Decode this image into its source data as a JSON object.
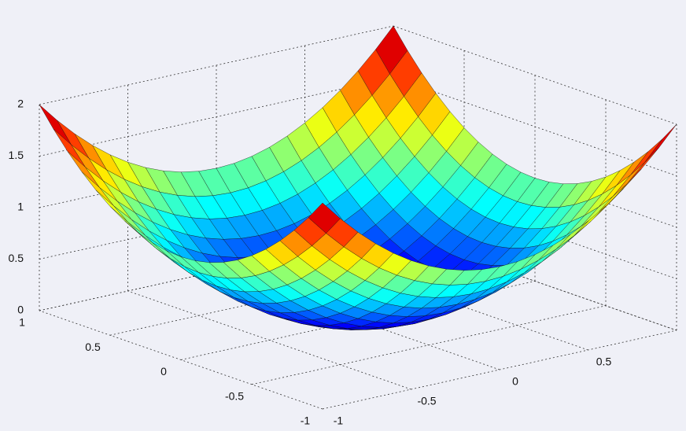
{
  "chart_data": {
    "type": "surface",
    "x": [
      -1,
      -0.9,
      -0.8,
      -0.7,
      -0.6,
      -0.5,
      -0.4,
      -0.3,
      -0.2,
      -0.1,
      0,
      0.1,
      0.2,
      0.3,
      0.4,
      0.5,
      0.6,
      0.7,
      0.8,
      0.9,
      1
    ],
    "y": [
      -1,
      -0.9,
      -0.8,
      -0.7,
      -0.6,
      -0.5,
      -0.4,
      -0.3,
      -0.2,
      -0.1,
      0,
      0.1,
      0.2,
      0.3,
      0.4,
      0.5,
      0.6,
      0.7,
      0.8,
      0.9,
      1
    ],
    "z": [
      [
        2,
        1.81,
        1.64,
        1.49,
        1.36,
        1.25,
        1.16,
        1.09,
        1.04,
        1.01,
        1,
        1.01,
        1.04,
        1.09,
        1.16,
        1.25,
        1.36,
        1.49,
        1.64,
        1.81,
        2
      ],
      [
        1.81,
        1.62,
        1.45,
        1.3,
        1.17,
        1.06,
        0.97,
        0.9,
        0.85,
        0.82,
        0.81,
        0.82,
        0.85,
        0.9,
        0.97,
        1.06,
        1.17,
        1.3,
        1.45,
        1.62,
        1.81
      ],
      [
        1.64,
        1.45,
        1.28,
        1.13,
        1,
        0.89,
        0.8,
        0.73,
        0.68,
        0.65,
        0.64,
        0.65,
        0.68,
        0.73,
        0.8,
        0.89,
        1,
        1.13,
        1.28,
        1.45,
        1.64
      ],
      [
        1.49,
        1.3,
        1.13,
        0.98,
        0.85,
        0.74,
        0.65,
        0.58,
        0.53,
        0.5,
        0.49,
        0.5,
        0.53,
        0.58,
        0.65,
        0.74,
        0.85,
        0.98,
        1.13,
        1.3,
        1.49
      ],
      [
        1.36,
        1.17,
        1,
        0.85,
        0.72,
        0.61,
        0.52,
        0.45,
        0.4,
        0.37,
        0.36,
        0.37,
        0.4,
        0.45,
        0.52,
        0.61,
        0.72,
        0.85,
        1,
        1.17,
        1.36
      ],
      [
        1.25,
        1.06,
        0.89,
        0.74,
        0.61,
        0.5,
        0.41,
        0.34,
        0.29,
        0.26,
        0.25,
        0.26,
        0.29,
        0.34,
        0.41,
        0.5,
        0.61,
        0.74,
        0.89,
        1.06,
        1.25
      ],
      [
        1.16,
        0.97,
        0.8,
        0.65,
        0.52,
        0.41,
        0.32,
        0.25,
        0.2,
        0.17,
        0.16,
        0.17,
        0.2,
        0.25,
        0.32,
        0.41,
        0.52,
        0.65,
        0.8,
        0.97,
        1.16
      ],
      [
        1.09,
        0.9,
        0.73,
        0.58,
        0.45,
        0.34,
        0.25,
        0.18,
        0.13,
        0.1,
        0.09,
        0.1,
        0.13,
        0.18,
        0.25,
        0.34,
        0.45,
        0.58,
        0.73,
        0.9,
        1.09
      ],
      [
        1.04,
        0.85,
        0.68,
        0.53,
        0.4,
        0.29,
        0.2,
        0.13,
        0.08,
        0.05,
        0.04,
        0.05,
        0.08,
        0.13,
        0.2,
        0.29,
        0.4,
        0.53,
        0.68,
        0.85,
        1.04
      ],
      [
        1.01,
        0.82,
        0.65,
        0.5,
        0.37,
        0.26,
        0.17,
        0.1,
        0.05,
        0.02,
        0.01,
        0.02,
        0.05,
        0.1,
        0.17,
        0.26,
        0.37,
        0.5,
        0.65,
        0.82,
        1.01
      ],
      [
        1,
        0.81,
        0.64,
        0.49,
        0.36,
        0.25,
        0.16,
        0.09,
        0.04,
        0.01,
        0,
        0.01,
        0.04,
        0.09,
        0.16,
        0.25,
        0.36,
        0.49,
        0.64,
        0.81,
        1
      ],
      [
        1.01,
        0.82,
        0.65,
        0.5,
        0.37,
        0.26,
        0.17,
        0.1,
        0.05,
        0.02,
        0.01,
        0.02,
        0.05,
        0.1,
        0.17,
        0.26,
        0.37,
        0.5,
        0.65,
        0.82,
        1.01
      ],
      [
        1.04,
        0.85,
        0.68,
        0.53,
        0.4,
        0.29,
        0.2,
        0.13,
        0.08,
        0.05,
        0.04,
        0.05,
        0.08,
        0.13,
        0.2,
        0.29,
        0.4,
        0.53,
        0.68,
        0.85,
        1.04
      ],
      [
        1.09,
        0.9,
        0.73,
        0.58,
        0.45,
        0.34,
        0.25,
        0.18,
        0.13,
        0.1,
        0.09,
        0.1,
        0.13,
        0.18,
        0.25,
        0.34,
        0.45,
        0.58,
        0.73,
        0.9,
        1.09
      ],
      [
        1.16,
        0.97,
        0.8,
        0.65,
        0.52,
        0.41,
        0.32,
        0.25,
        0.2,
        0.17,
        0.16,
        0.17,
        0.2,
        0.25,
        0.32,
        0.41,
        0.52,
        0.65,
        0.8,
        0.97,
        1.16
      ],
      [
        1.25,
        1.06,
        0.89,
        0.74,
        0.61,
        0.5,
        0.41,
        0.34,
        0.29,
        0.26,
        0.25,
        0.26,
        0.29,
        0.34,
        0.41,
        0.5,
        0.61,
        0.74,
        0.89,
        1.06,
        1.25
      ],
      [
        1.36,
        1.17,
        1,
        0.85,
        0.72,
        0.61,
        0.52,
        0.45,
        0.4,
        0.37,
        0.36,
        0.37,
        0.4,
        0.45,
        0.52,
        0.61,
        0.72,
        0.85,
        1,
        1.17,
        1.36
      ],
      [
        1.49,
        1.3,
        1.13,
        0.98,
        0.85,
        0.74,
        0.65,
        0.58,
        0.53,
        0.5,
        0.49,
        0.5,
        0.53,
        0.58,
        0.65,
        0.74,
        0.85,
        0.98,
        1.13,
        1.3,
        1.49
      ],
      [
        1.64,
        1.45,
        1.28,
        1.13,
        1,
        0.89,
        0.8,
        0.73,
        0.68,
        0.65,
        0.64,
        0.65,
        0.68,
        0.73,
        0.8,
        0.89,
        1,
        1.13,
        1.28,
        1.45,
        1.64
      ],
      [
        1.81,
        1.62,
        1.45,
        1.3,
        1.17,
        1.06,
        0.97,
        0.9,
        0.85,
        0.82,
        0.81,
        0.82,
        0.85,
        0.9,
        0.97,
        1.06,
        1.17,
        1.3,
        1.45,
        1.62,
        1.81
      ],
      [
        2,
        1.81,
        1.64,
        1.49,
        1.36,
        1.25,
        1.16,
        1.09,
        1.04,
        1.01,
        1,
        1.01,
        1.04,
        1.09,
        1.16,
        1.25,
        1.36,
        1.49,
        1.64,
        1.81,
        2
      ]
    ],
    "xlim": [
      -1,
      1
    ],
    "ylim": [
      -1,
      1
    ],
    "zlim": [
      0,
      2
    ],
    "xticks": [
      -1,
      -0.5,
      0,
      0.5,
      1
    ],
    "yticks": [
      -1,
      -0.5,
      0,
      0.5,
      1
    ],
    "zticks": [
      0,
      0.5,
      1,
      1.5,
      2
    ],
    "grid": true,
    "colormap": "jet"
  }
}
